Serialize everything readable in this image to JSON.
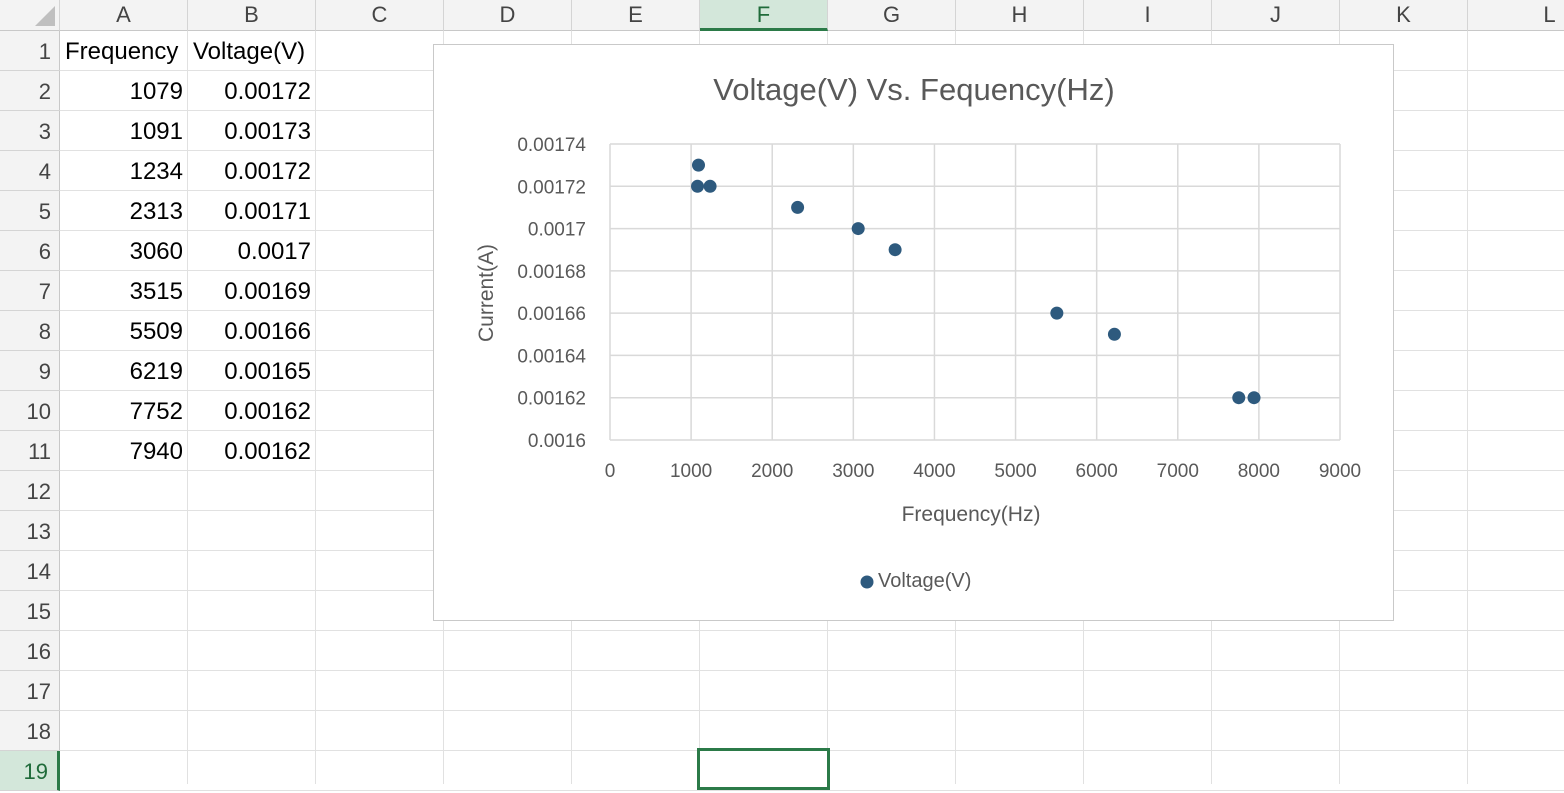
{
  "columns": [
    "A",
    "B",
    "C",
    "D",
    "E",
    "F",
    "G",
    "H",
    "I",
    "J",
    "K",
    "L"
  ],
  "selected_column": "F",
  "rows": [
    "1",
    "2",
    "3",
    "4",
    "5",
    "6",
    "7",
    "8",
    "9",
    "10",
    "11",
    "12",
    "13",
    "14",
    "15",
    "16",
    "17",
    "18",
    "19"
  ],
  "selected_row": "19",
  "sheet": {
    "header": [
      "Frequency",
      "Voltage(V)"
    ],
    "data": [
      [
        "1079",
        "0.00172"
      ],
      [
        "1091",
        "0.00173"
      ],
      [
        "1234",
        "0.00172"
      ],
      [
        "2313",
        "0.00171"
      ],
      [
        "3060",
        "0.0017"
      ],
      [
        "3515",
        "0.00169"
      ],
      [
        "5509",
        "0.00166"
      ],
      [
        "6219",
        "0.00165"
      ],
      [
        "7752",
        "0.00162"
      ],
      [
        "7940",
        "0.00162"
      ]
    ]
  },
  "chart_data": {
    "type": "scatter",
    "title": "Voltage(V) Vs. Fequency(Hz)",
    "xlabel": "Frequency(Hz)",
    "ylabel": "Current(A)",
    "xlim": [
      0,
      9000
    ],
    "ylim": [
      0.0016,
      0.00174
    ],
    "x_ticks": [
      "0",
      "1000",
      "2000",
      "3000",
      "4000",
      "5000",
      "6000",
      "7000",
      "8000",
      "9000"
    ],
    "y_ticks": [
      "0.0016",
      "0.00162",
      "0.00164",
      "0.00166",
      "0.00168",
      "0.0017",
      "0.00172",
      "0.00174"
    ],
    "grid": true,
    "legend": "bottom",
    "marker_color": "#2e5a7e",
    "series": [
      {
        "name": "Voltage(V)",
        "x": [
          1079,
          1091,
          1234,
          2313,
          3060,
          3515,
          5509,
          6219,
          7752,
          7940
        ],
        "y": [
          0.00172,
          0.00173,
          0.00172,
          0.00171,
          0.0017,
          0.00169,
          0.00166,
          0.00165,
          0.00162,
          0.00162
        ]
      }
    ]
  },
  "colors": {
    "accent": "#2b7a48",
    "header_bg": "#f3f3f3",
    "selected_header_bg": "#d3e7da"
  }
}
